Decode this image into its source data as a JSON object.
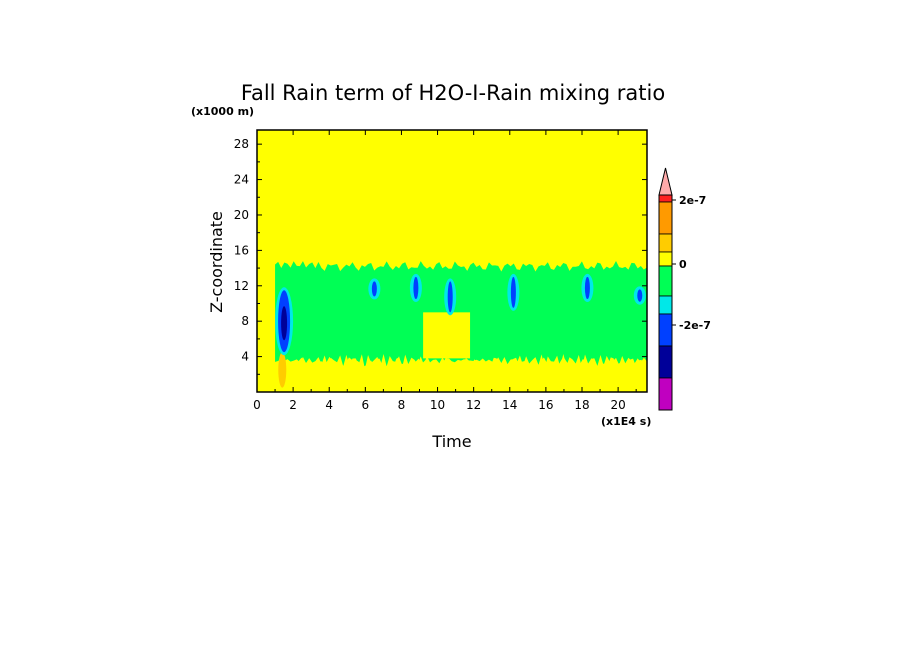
{
  "chart_data": {
    "type": "heatmap",
    "title": "Fall Rain term of H2O-I-Rain mixing ratio",
    "xlabel": "Time",
    "ylabel": "Z-coordinate",
    "x_unit_label": "(x1E4 s)",
    "y_unit_label": "(x1000 m)",
    "xlim": [
      0,
      21.6
    ],
    "ylim": [
      0,
      29.6
    ],
    "x_ticks": [
      "0",
      "2",
      "4",
      "6",
      "8",
      "10",
      "12",
      "14",
      "16",
      "18",
      "20"
    ],
    "y_ticks": [
      "4",
      "8",
      "12",
      "16",
      "20",
      "24",
      "28"
    ],
    "colorbar": {
      "levels": [
        {
          "color": "#ffaaaa",
          "kind": "overflow"
        },
        {
          "color": "#ff2020"
        },
        {
          "color": "#ff9a00"
        },
        {
          "color": "#ffcc00"
        },
        {
          "color": "#ffff00"
        },
        {
          "color": "#00ff55"
        },
        {
          "color": "#00e8e8"
        },
        {
          "color": "#0040ff"
        },
        {
          "color": "#000099"
        },
        {
          "color": "#c000c0"
        }
      ],
      "tick_labels": [
        "2e-7",
        "0",
        "-2e-7"
      ]
    },
    "regions": {
      "background": {
        "color": "#ffff00",
        "value_sign": "zero"
      },
      "active_band": {
        "color": "#00ff55",
        "x_range": [
          1.0,
          21.6
        ],
        "z_range": [
          3.0,
          15.0
        ],
        "value_sign": "slightly negative"
      },
      "inner_zero_window": {
        "color": "#ffff00",
        "x_range": [
          9.2,
          11.8
        ],
        "z_range": [
          3.8,
          9.0
        ]
      },
      "low_level_zero": {
        "color": "#ffff00",
        "z_range": [
          0,
          3.6
        ]
      },
      "negative_cores": [
        {
          "x": 1.5,
          "z_range": [
            4.5,
            11.5
          ],
          "min_color": "#000099"
        },
        {
          "x": 6.5,
          "z_range": [
            10.8,
            12.5
          ],
          "min_color": "#0040ff"
        },
        {
          "x": 8.8,
          "z_range": [
            10.5,
            13.0
          ],
          "min_color": "#0040ff"
        },
        {
          "x": 10.7,
          "z_range": [
            9.0,
            12.5
          ],
          "min_color": "#0040ff"
        },
        {
          "x": 14.2,
          "z_range": [
            9.5,
            13.0
          ],
          "min_color": "#0040ff"
        },
        {
          "x": 18.3,
          "z_range": [
            10.5,
            13.0
          ],
          "min_color": "#0040ff"
        },
        {
          "x": 21.2,
          "z_range": [
            10.2,
            11.6
          ],
          "min_color": "#0040ff"
        }
      ],
      "positive_patch": {
        "x": 1.4,
        "z_range": [
          0.5,
          4.5
        ],
        "color": "#ffcc00"
      }
    }
  }
}
